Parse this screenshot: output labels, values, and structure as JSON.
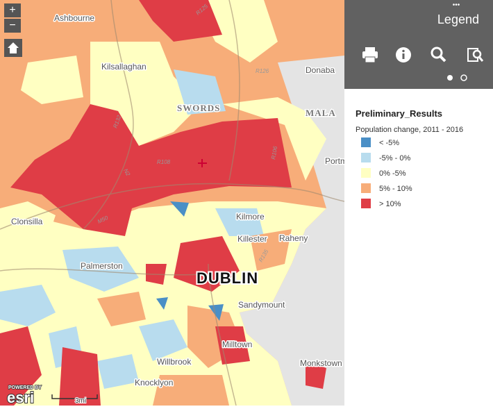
{
  "zoom": {
    "in": "+",
    "out": "−"
  },
  "map": {
    "places": [
      "Ashbourne",
      "Kilsallaghan",
      "SWORDS",
      "MALA",
      "Donaba",
      "Portm",
      "Clonsilla",
      "Kilmore",
      "Killester",
      "Raheny",
      "Palmerston",
      "DUBLIN",
      "Sandymount",
      "Milltown",
      "Willbrook",
      "Knocklyon",
      "Monkstown"
    ],
    "roads": [
      "R125",
      "R126",
      "R108",
      "M50",
      "N2",
      "R132",
      "R106",
      "R135"
    ],
    "scale": "3mi",
    "attribution": {
      "powered_by": "POWERED BY",
      "logo": "esri"
    }
  },
  "panel": {
    "more": "•••",
    "title": "Legend",
    "layer": "Preliminary_Results",
    "field": "Population change, 2011 - 2016",
    "items": [
      {
        "label": "< -5%",
        "color": "#4a8fc6"
      },
      {
        "label": "-5% - 0%",
        "color": "#b8dcee"
      },
      {
        "label": "0% -5%",
        "color": "#ffffc2"
      },
      {
        "label": "5% - 10%",
        "color": "#f7ad79"
      },
      {
        "label": "> 10%",
        "color": "#df3d46"
      }
    ]
  }
}
